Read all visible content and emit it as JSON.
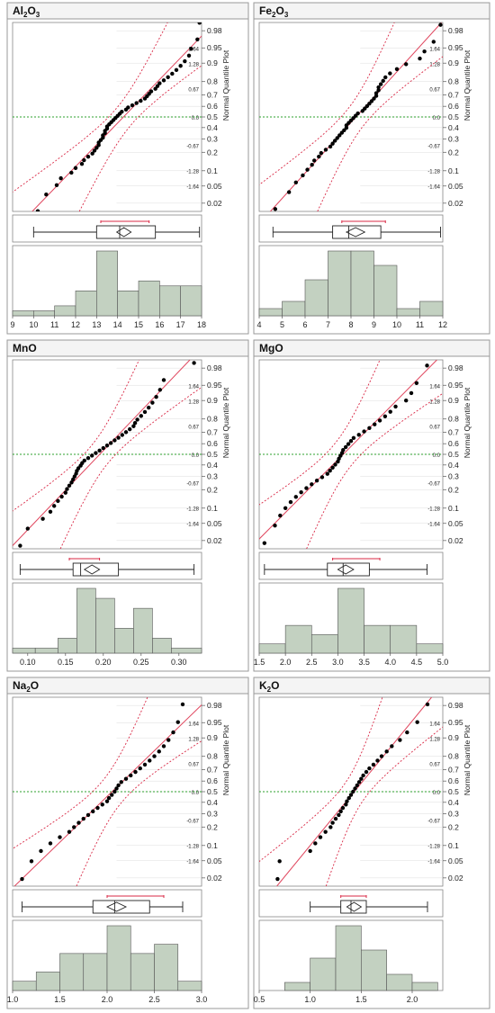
{
  "panels": [
    {
      "title_main": "Al",
      "title_sub1": "2",
      "title_mid": "O",
      "title_sub2": "3",
      "q_side_label": "Normal Quantile Plot",
      "xlim": [
        9,
        18
      ],
      "xticks": [
        "9",
        "10",
        "11",
        "12",
        "13",
        "14",
        "15",
        "16",
        "17",
        "18"
      ],
      "box": {
        "whisker_low": 10.0,
        "q1": 13.0,
        "median": 14.1,
        "q3": 15.8,
        "whisker_high": 17.9,
        "mean": 14.3,
        "ci": [
          14.0,
          14.6
        ],
        "shortest_half": [
          13.2,
          15.5
        ]
      },
      "hist": {
        "bins": [
          9,
          10,
          11,
          12,
          13,
          14,
          15,
          16,
          17,
          18
        ],
        "counts": [
          1,
          1,
          2,
          5,
          13,
          5,
          7,
          6,
          6
        ]
      },
      "q_points": [
        10.2,
        10.6,
        11.1,
        11.3,
        11.8,
        12.0,
        12.3,
        12.4,
        12.6,
        12.8,
        12.9,
        13.0,
        13.1,
        13.1,
        13.2,
        13.3,
        13.3,
        13.4,
        13.4,
        13.5,
        13.5,
        13.6,
        13.7,
        13.8,
        13.9,
        14.0,
        14.1,
        14.2,
        14.4,
        14.5,
        14.7,
        14.9,
        15.1,
        15.3,
        15.4,
        15.5,
        15.6,
        15.8,
        15.9,
        16.0,
        16.2,
        16.4,
        16.6,
        16.8,
        17.0,
        17.2,
        17.4,
        17.5,
        17.8,
        17.9
      ]
    },
    {
      "title_main": "Fe",
      "title_sub1": "2",
      "title_mid": "O",
      "title_sub2": "3",
      "q_side_label": "Normal Quantile Plot",
      "xlim": [
        4,
        12
      ],
      "xticks": [
        "4",
        "5",
        "6",
        "7",
        "8",
        "9",
        "10",
        "11",
        "12"
      ],
      "box": {
        "whisker_low": 4.6,
        "q1": 7.2,
        "median": 7.9,
        "q3": 9.3,
        "whisker_high": 11.9,
        "mean": 8.2,
        "ci": [
          7.8,
          8.6
        ],
        "shortest_half": [
          7.6,
          9.5
        ]
      },
      "hist": {
        "bins": [
          4,
          5,
          6,
          7,
          8,
          9,
          10,
          11,
          12
        ],
        "counts": [
          1,
          2,
          5,
          9,
          9,
          7,
          1,
          2
        ]
      },
      "q_points": [
        4.7,
        5.3,
        5.6,
        5.9,
        6.1,
        6.3,
        6.4,
        6.6,
        6.7,
        6.9,
        7.1,
        7.2,
        7.3,
        7.4,
        7.5,
        7.6,
        7.7,
        7.8,
        7.8,
        7.9,
        8.0,
        8.1,
        8.2,
        8.3,
        8.5,
        8.6,
        8.7,
        8.8,
        8.9,
        9.0,
        9.1,
        9.1,
        9.2,
        9.2,
        9.3,
        9.4,
        9.5,
        9.7,
        10.0,
        10.4,
        11.0,
        11.2,
        11.6,
        11.9
      ]
    },
    {
      "title_main": "MnO",
      "title_sub1": "",
      "title_mid": "",
      "title_sub2": "",
      "q_side_label": "Normal Quantile Plot",
      "xlim": [
        0.08,
        0.33
      ],
      "xticks": [
        "0.10",
        "0.15",
        "0.20",
        "0.25",
        "0.30"
      ],
      "box": {
        "whisker_low": 0.09,
        "q1": 0.16,
        "median": 0.17,
        "q3": 0.22,
        "whisker_high": 0.32,
        "mean": 0.185,
        "ci": [
          0.175,
          0.195
        ],
        "shortest_half": [
          0.155,
          0.195
        ]
      },
      "hist": {
        "bins": [
          0.08,
          0.11,
          0.14,
          0.165,
          0.19,
          0.215,
          0.24,
          0.265,
          0.29,
          0.33
        ],
        "counts": [
          1,
          1,
          3,
          13,
          11,
          5,
          9,
          3,
          1
        ]
      },
      "q_points": [
        0.09,
        0.1,
        0.12,
        0.13,
        0.135,
        0.14,
        0.145,
        0.15,
        0.152,
        0.155,
        0.158,
        0.16,
        0.162,
        0.164,
        0.165,
        0.167,
        0.17,
        0.172,
        0.175,
        0.18,
        0.185,
        0.19,
        0.195,
        0.2,
        0.205,
        0.21,
        0.215,
        0.22,
        0.225,
        0.23,
        0.235,
        0.24,
        0.242,
        0.245,
        0.25,
        0.255,
        0.26,
        0.265,
        0.27,
        0.275,
        0.28,
        0.32
      ]
    },
    {
      "title_main": "MgO",
      "title_sub1": "",
      "title_mid": "",
      "title_sub2": "",
      "q_side_label": "Normal Quantile Plot",
      "xlim": [
        1.5,
        5.0
      ],
      "xticks": [
        "1.5",
        "2.0",
        "2.5",
        "3.0",
        "3.5",
        "4.0",
        "4.5",
        "5.0"
      ],
      "box": {
        "whisker_low": 1.6,
        "q1": 2.8,
        "median": 3.1,
        "q3": 3.6,
        "whisker_high": 4.7,
        "mean": 3.15,
        "ci": [
          3.0,
          3.3
        ],
        "shortest_half": [
          2.9,
          3.8
        ]
      },
      "hist": {
        "bins": [
          1.5,
          2.0,
          2.5,
          3.0,
          3.5,
          4.0,
          4.5,
          5.0
        ],
        "counts": [
          1,
          3,
          2,
          7,
          3,
          3,
          1
        ]
      },
      "q_points": [
        1.6,
        1.8,
        1.9,
        2.0,
        2.1,
        2.2,
        2.3,
        2.4,
        2.5,
        2.6,
        2.7,
        2.8,
        2.85,
        2.9,
        2.95,
        3.0,
        3.02,
        3.05,
        3.08,
        3.1,
        3.15,
        3.2,
        3.25,
        3.3,
        3.4,
        3.5,
        3.6,
        3.7,
        3.8,
        3.9,
        4.0,
        4.1,
        4.3,
        4.4,
        4.5,
        4.7
      ]
    },
    {
      "title_main": "Na",
      "title_sub1": "2",
      "title_mid": "O",
      "title_sub2": "",
      "q_side_label": "Normal Quantile Plot",
      "xlim": [
        1.0,
        3.0
      ],
      "xticks": [
        "1.0",
        "1.5",
        "2.0",
        "2.5",
        "3.0"
      ],
      "box": {
        "whisker_low": 1.1,
        "q1": 1.85,
        "median": 2.08,
        "q3": 2.45,
        "whisker_high": 2.8,
        "mean": 2.1,
        "ci": [
          2.0,
          2.2
        ],
        "shortest_half": [
          2.0,
          2.6
        ]
      },
      "hist": {
        "bins": [
          1.0,
          1.25,
          1.5,
          1.75,
          2.0,
          2.25,
          2.5,
          2.75,
          3.0
        ],
        "counts": [
          1,
          2,
          4,
          4,
          7,
          4,
          5,
          1
        ]
      },
      "q_points": [
        1.1,
        1.2,
        1.3,
        1.4,
        1.5,
        1.6,
        1.65,
        1.7,
        1.75,
        1.8,
        1.85,
        1.9,
        1.95,
        2.0,
        2.02,
        2.05,
        2.08,
        2.1,
        2.12,
        2.15,
        2.2,
        2.25,
        2.3,
        2.35,
        2.4,
        2.45,
        2.5,
        2.55,
        2.6,
        2.65,
        2.7,
        2.75,
        2.8
      ]
    },
    {
      "title_main": "K",
      "title_sub1": "2",
      "title_mid": "O",
      "title_sub2": "",
      "q_side_label": "Normal Quantile Plot",
      "xlim": [
        0.5,
        2.3
      ],
      "xticks": [
        "0.5",
        "1.0",
        "1.5",
        "2.0"
      ],
      "box": {
        "whisker_low": 1.0,
        "q1": 1.3,
        "median": 1.4,
        "q3": 1.55,
        "whisker_high": 2.15,
        "mean": 1.43,
        "ci": [
          1.38,
          1.48
        ],
        "shortest_half": [
          1.3,
          1.55
        ]
      },
      "hist": {
        "bins": [
          0.5,
          0.75,
          1.0,
          1.25,
          1.5,
          1.75,
          2.0,
          2.25
        ],
        "counts": [
          0,
          1,
          4,
          8,
          5,
          2,
          1
        ]
      },
      "q_points": [
        0.68,
        0.7,
        1.0,
        1.05,
        1.1,
        1.15,
        1.2,
        1.22,
        1.25,
        1.28,
        1.3,
        1.32,
        1.35,
        1.36,
        1.38,
        1.4,
        1.42,
        1.44,
        1.46,
        1.48,
        1.5,
        1.52,
        1.55,
        1.58,
        1.62,
        1.66,
        1.7,
        1.75,
        1.8,
        1.88,
        1.95,
        2.05,
        2.15
      ]
    }
  ],
  "prob_labels": [
    "0.98",
    "0.95",
    "0.9",
    "0.8",
    "0.7",
    "0.6",
    "0.5",
    "0.4",
    "0.3",
    "0.2",
    "0.1",
    "0.05",
    "0.02"
  ],
  "z_labels": [
    "1.64",
    "1.28",
    "0.67",
    "0.0",
    "-0.67",
    "-1.28",
    "-1.64"
  ],
  "colors": {
    "ref_line": "#e0465e",
    "ci": "#d92845",
    "dot": "#000000",
    "green": "#2ca02c",
    "bar": "#c3d1c1",
    "bar_edge": "#555555",
    "panel_border": "#999999"
  },
  "chart_data": [
    {
      "type": "bar",
      "title": "Al2O3",
      "categories": [
        "9",
        "10",
        "11",
        "12",
        "13",
        "14",
        "15",
        "16",
        "17"
      ],
      "values": [
        1,
        1,
        2,
        5,
        13,
        5,
        7,
        6,
        6
      ]
    },
    {
      "type": "bar",
      "title": "Fe2O3",
      "categories": [
        "4",
        "5",
        "6",
        "7",
        "8",
        "9",
        "10",
        "11"
      ],
      "values": [
        1,
        2,
        5,
        9,
        9,
        7,
        1,
        2
      ]
    },
    {
      "type": "bar",
      "title": "MnO",
      "categories": [
        "0.08",
        "0.11",
        "0.14",
        "0.165",
        "0.19",
        "0.215",
        "0.24",
        "0.265",
        "0.29"
      ],
      "values": [
        1,
        1,
        3,
        13,
        11,
        5,
        9,
        3,
        1
      ]
    },
    {
      "type": "bar",
      "title": "MgO",
      "categories": [
        "1.5",
        "2.0",
        "2.5",
        "3.0",
        "3.5",
        "4.0",
        "4.5"
      ],
      "values": [
        1,
        3,
        2,
        7,
        3,
        3,
        1
      ]
    },
    {
      "type": "bar",
      "title": "Na2O",
      "categories": [
        "1.0",
        "1.25",
        "1.5",
        "1.75",
        "2.0",
        "2.25",
        "2.5",
        "2.75"
      ],
      "values": [
        1,
        2,
        4,
        4,
        7,
        4,
        5,
        1
      ]
    },
    {
      "type": "bar",
      "title": "K2O",
      "categories": [
        "0.5",
        "0.75",
        "1.0",
        "1.25",
        "1.5",
        "1.75",
        "2.0"
      ],
      "values": [
        0,
        1,
        4,
        8,
        5,
        2,
        1
      ]
    }
  ]
}
